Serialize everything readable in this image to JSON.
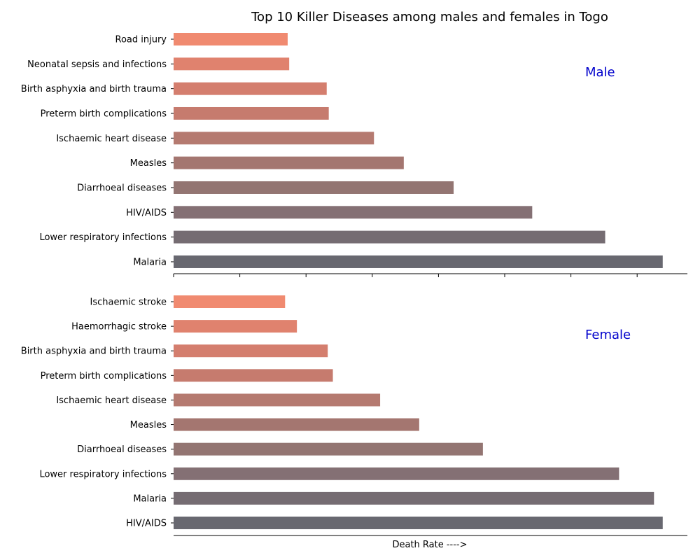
{
  "chart_data": {
    "type": "bar",
    "orientation": "horizontal",
    "title": "Top 10 Killer Diseases among males and females in Togo",
    "xlabel": "Death Rate ---->",
    "xlim": [
      0,
      100
    ],
    "shared_x": true,
    "x_tick_count": 8,
    "x_tick_labels_shown": false,
    "grid": false,
    "panels": [
      {
        "label": "Male",
        "categories": [
          "Road injury",
          "Neonatal sepsis and infections",
          "Birth asphyxia and birth trauma",
          "Preterm birth complications",
          "Ischaemic heart disease",
          "Measles",
          "Diarrhoeal diseases",
          "HIV/AIDS",
          "Lower respiratory infections",
          "Malaria"
        ],
        "values": [
          22.2,
          22.5,
          29.8,
          30.2,
          39.0,
          44.8,
          54.5,
          69.8,
          84.0,
          95.2
        ],
        "colors": [
          "#f08a70",
          "#e0826e",
          "#d47e6e",
          "#c67b6e",
          "#b57a70",
          "#a47670",
          "#937572",
          "#847074",
          "#756c72",
          "#686870"
        ]
      },
      {
        "label": "Female",
        "categories": [
          "Ischaemic stroke",
          "Haemorrhagic stroke",
          "Birth asphyxia and birth trauma",
          "Preterm birth complications",
          "Ischaemic heart disease",
          "Measles",
          "Diarrhoeal diseases",
          "Lower respiratory infections",
          "Malaria",
          "HIV/AIDS"
        ],
        "values": [
          21.7,
          24.0,
          30.0,
          31.0,
          40.2,
          47.8,
          60.2,
          86.7,
          93.5,
          95.2
        ],
        "colors": [
          "#f08a70",
          "#e0826e",
          "#d47e6e",
          "#c67b6e",
          "#b57a70",
          "#a47670",
          "#937572",
          "#847074",
          "#756c72",
          "#686870"
        ]
      }
    ]
  }
}
